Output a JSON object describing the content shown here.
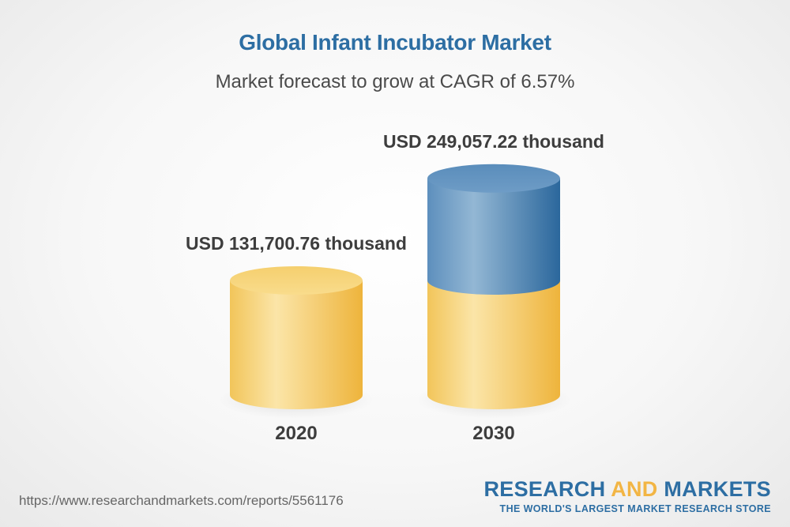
{
  "header": {
    "title": "Global Infant Incubator Market",
    "subtitle": "Market forecast to grow at CAGR of 6.57%"
  },
  "chart_data": {
    "type": "bar",
    "title": "Global Infant Incubator Market",
    "subtitle": "Market forecast to grow at CAGR of 6.57%",
    "categories": [
      "2020",
      "2030"
    ],
    "values": [
      131700.76,
      249057.22
    ],
    "data_labels": [
      "USD 131,700.76 thousand",
      "USD 249,057.22 thousand"
    ],
    "unit": "USD thousand",
    "cagr_percent": 6.57,
    "style": "3d-cylinder",
    "colors": {
      "base": "#f2c75a",
      "growth": "#3f7db2"
    }
  },
  "footer": {
    "source_url": "https://www.researchandmarkets.com/reports/5561176",
    "brand_part1": "RESEARCH ",
    "brand_part2": "AND",
    "brand_part3": " MARKETS",
    "brand_tagline": "THE WORLD'S LARGEST MARKET RESEARCH STORE"
  }
}
